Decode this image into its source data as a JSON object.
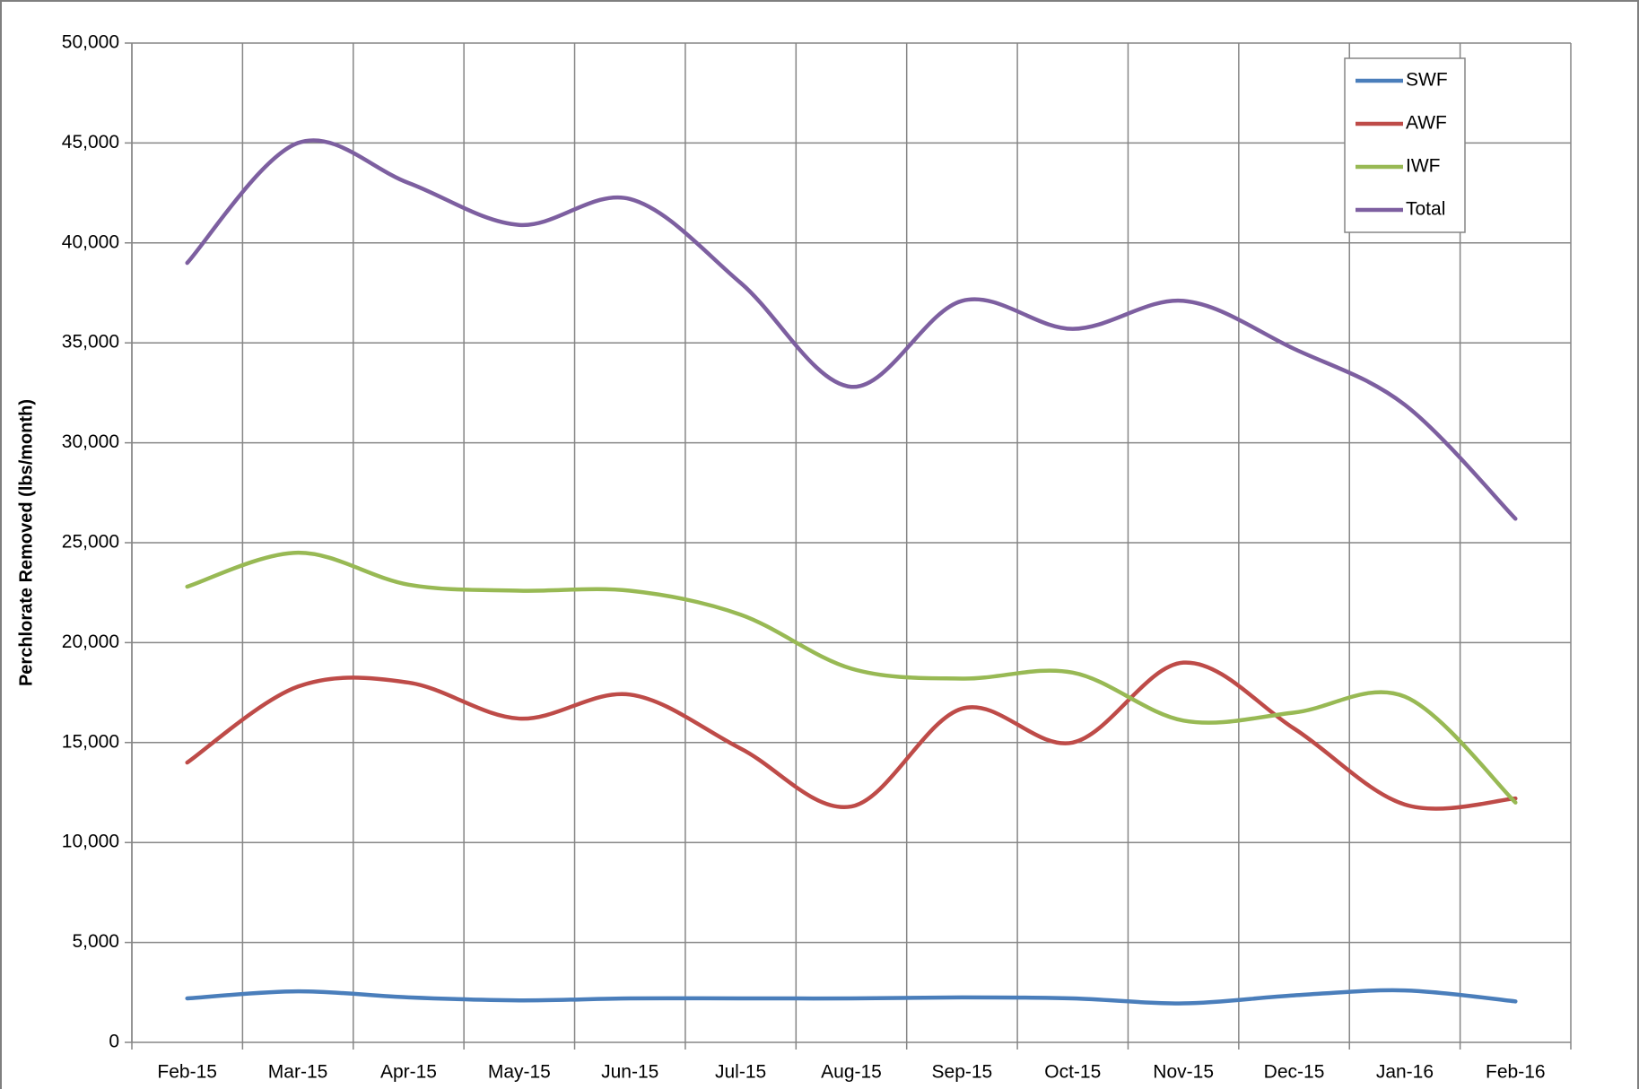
{
  "chart_data": {
    "type": "line",
    "y_label": "Perchlorate Removed (lbs/month)",
    "categories": [
      "Feb-15",
      "Mar-15",
      "Apr-15",
      "May-15",
      "Jun-15",
      "Jul-15",
      "Aug-15",
      "Sep-15",
      "Oct-15",
      "Nov-15",
      "Dec-15",
      "Jan-16",
      "Feb-16"
    ],
    "series": [
      {
        "name": "SWF",
        "color": "#4a7ebb",
        "values": [
          2200,
          2550,
          2250,
          2100,
          2200,
          2200,
          2200,
          2250,
          2200,
          1950,
          2350,
          2600,
          2050
        ]
      },
      {
        "name": "AWF",
        "color": "#be4b48",
        "values": [
          14000,
          17800,
          18000,
          16200,
          17400,
          14700,
          11800,
          16700,
          15000,
          19000,
          15700,
          11900,
          12200
        ]
      },
      {
        "name": "IWF",
        "color": "#98b954",
        "values": [
          22800,
          24500,
          22900,
          22600,
          22600,
          21400,
          18700,
          18200,
          18500,
          16100,
          16500,
          17300,
          12000
        ]
      },
      {
        "name": "Total",
        "color": "#7d5fa0",
        "values": [
          39000,
          45000,
          43000,
          40900,
          42200,
          38000,
          32800,
          37100,
          35700,
          37100,
          34700,
          31900,
          26200
        ]
      }
    ],
    "ylim": [
      0,
      50000
    ],
    "yticks": [
      0,
      {
        "value": 5000,
        "label": "5,000"
      },
      {
        "value": 10000,
        "label": "10,000"
      },
      {
        "value": 15000,
        "label": "15,000"
      },
      {
        "value": 20000,
        "label": "20,000"
      },
      {
        "value": 25000,
        "label": "25,000"
      },
      {
        "value": 30000,
        "label": "30,000"
      },
      {
        "value": 35000,
        "label": "35,000"
      },
      {
        "value": 40000,
        "label": "40,000"
      },
      {
        "value": 45000,
        "label": "45,000"
      },
      {
        "value": 50000,
        "label": "50,000"
      }
    ],
    "grid": true,
    "legend": "upper right"
  }
}
